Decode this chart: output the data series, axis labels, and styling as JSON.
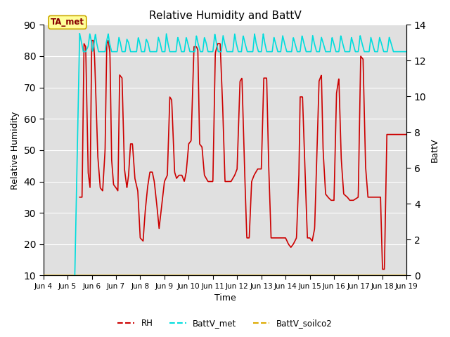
{
  "title": "Relative Humidity and BattV",
  "xlabel": "Time",
  "ylabel_left": "Relative Humidity",
  "ylabel_right": "BattV",
  "annotation_text": "TA_met",
  "xlim_days": [
    4,
    19
  ],
  "ylim_left": [
    10,
    90
  ],
  "ylim_right": [
    0,
    14
  ],
  "yticks_left": [
    10,
    20,
    30,
    40,
    50,
    60,
    70,
    80,
    90
  ],
  "yticks_right": [
    0,
    2,
    4,
    6,
    8,
    10,
    12,
    14
  ],
  "xtick_labels": [
    "Jun 4",
    "Jun 5",
    "Jun 6",
    "Jun 7",
    "Jun 8",
    "Jun 9",
    "Jun 10",
    "Jun 11",
    "Jun 12",
    "Jun 13",
    "Jun 14",
    "Jun 15",
    "Jun 16",
    "Jun 17",
    "Jun 18",
    "Jun 19"
  ],
  "xtick_positions": [
    4,
    5,
    6,
    7,
    8,
    9,
    10,
    11,
    12,
    13,
    14,
    15,
    16,
    17,
    18,
    19
  ],
  "color_rh": "#cc0000",
  "color_battv_met": "#00dddd",
  "color_battv_soilco2": "#ddaa00",
  "bg_color": "#e0e0e0",
  "grid_color": "#ffffff",
  "annotation_box_color": "#ffff99",
  "annotation_box_edge": "#ccaa00",
  "legend_labels": [
    "RH",
    "BattV_met",
    "BattV_soilco2"
  ]
}
